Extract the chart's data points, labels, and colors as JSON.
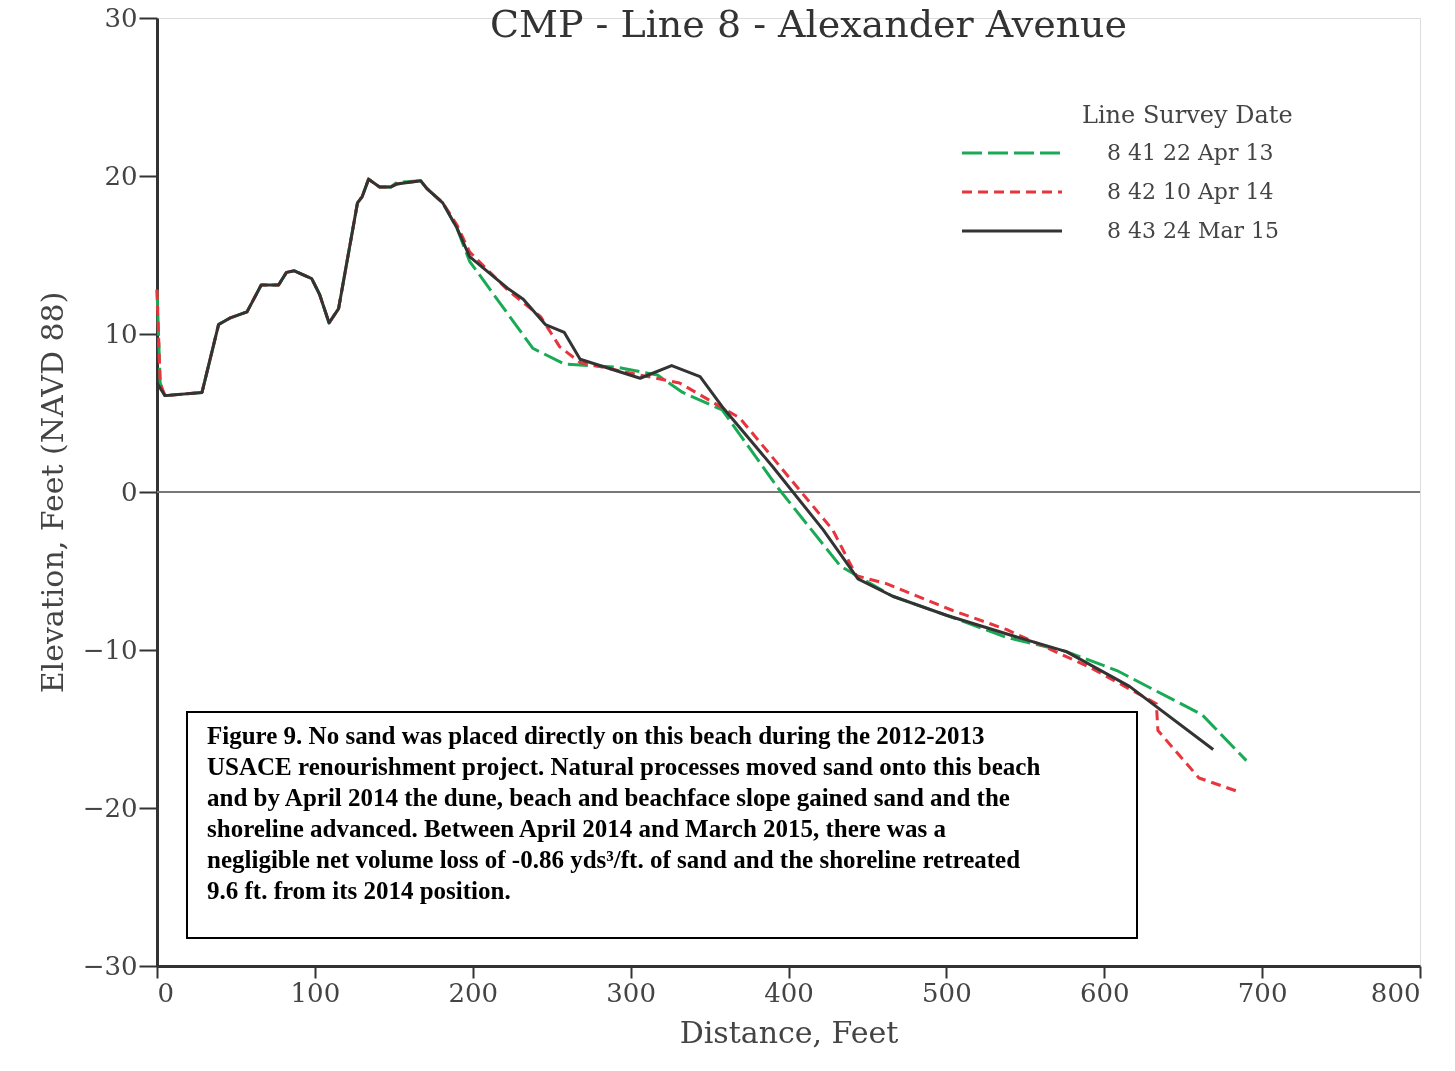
{
  "chart_data": {
    "type": "line",
    "title": "CMP - Line 8 - Alexander Avenue",
    "xlabel": "Distance, Feet",
    "ylabel": "Elevation, Feet (NAVD 88)",
    "xlim": [
      0,
      800
    ],
    "xticks": [
      0,
      100,
      200,
      300,
      400,
      500,
      600,
      700,
      800
    ],
    "ylim": [
      -30,
      30
    ],
    "yticks": [
      -30,
      -20,
      -10,
      0,
      10,
      20,
      30
    ],
    "grid": false,
    "legend": "top right",
    "legend_title": "Line Survey Date",
    "marker": "none",
    "ref_lines": [
      {
        "axis": "y",
        "value": 0,
        "color": "#777777"
      }
    ],
    "annotations": [
      "Figure 9.  No sand was placed directly on this beach during the 2012-2013\nUSACE renourishment project.  Natural processes moved sand onto this beach\nand by April 2014 the dune, beach and beachface slope gained sand and the\nshoreline advanced.  Between April 2014 and March 2015, there was a\nnegligible net volume loss of -0.86 yds³/ft. of sand and the shoreline retreated\n9.6 ft. from its 2014 position."
    ],
    "series": [
      {
        "name": "8 41 22 Apr 13",
        "color": "#1aaa55",
        "line_style": "dashed",
        "x": [
          0,
          2,
          5,
          28.5,
          39,
          46,
          57,
          66,
          77,
          82,
          87,
          98,
          103,
          109,
          115,
          127,
          130,
          134,
          141,
          148,
          152,
          167,
          171,
          181,
          190,
          198,
          238,
          258,
          291,
          317,
          333,
          358,
          393,
          433,
          466,
          500,
          538,
          576,
          608,
          662,
          690
        ],
        "values": [
          12.8,
          6.9,
          6.1,
          6.3,
          10.6,
          11.0,
          11.4,
          13.1,
          13.1,
          13.9,
          14.0,
          13.5,
          12.5,
          10.7,
          11.6,
          18.3,
          18.7,
          19.8,
          19.3,
          19.3,
          19.6,
          19.7,
          19.2,
          18.3,
          16.7,
          14.6,
          9.1,
          8.1,
          7.9,
          7.4,
          6.3,
          5.2,
          0.3,
          -4.7,
          -6.6,
          -7.8,
          -9.2,
          -10.1,
          -11.3,
          -14.1,
          -17.0
        ]
      },
      {
        "name": "8 42 10 Apr 14",
        "color": "#e8343c",
        "line_style": "dotted",
        "x": [
          0,
          2,
          5,
          28.5,
          39,
          46,
          57,
          66,
          77,
          82,
          87,
          98,
          103,
          109,
          115,
          127,
          130,
          134,
          141,
          148,
          152,
          167,
          171,
          181,
          190,
          198,
          222,
          243,
          255,
          268,
          306,
          331,
          369,
          428,
          443,
          462,
          504,
          538,
          591,
          633,
          634,
          660,
          686
        ],
        "values": [
          12.8,
          6.9,
          6.1,
          6.3,
          10.6,
          11.0,
          11.4,
          13.1,
          13.1,
          13.9,
          14.0,
          13.5,
          12.5,
          10.7,
          11.6,
          18.3,
          18.7,
          19.8,
          19.3,
          19.3,
          19.5,
          19.7,
          19.2,
          18.3,
          16.9,
          15.2,
          12.8,
          11.1,
          9.2,
          8.2,
          7.4,
          6.9,
          4.7,
          -2.4,
          -5.3,
          -5.8,
          -7.5,
          -8.7,
          -11.1,
          -13.4,
          -15.1,
          -18.1,
          -19.0
        ]
      },
      {
        "name": "8 43 24 Mar 15",
        "color": "#333333",
        "line_style": "solid",
        "x": [
          0,
          5,
          28.5,
          39,
          46,
          57,
          66,
          77,
          82,
          87,
          98,
          103,
          109,
          115,
          127,
          130,
          134,
          141,
          148,
          152,
          167,
          171,
          181,
          190,
          198,
          222,
          232,
          246,
          258,
          268,
          306,
          326,
          344,
          358,
          390,
          422,
          444,
          466,
          500,
          542,
          576,
          616,
          669
        ],
        "values": [
          6.9,
          6.1,
          6.3,
          10.6,
          11.0,
          11.4,
          13.1,
          13.1,
          13.9,
          14.0,
          13.5,
          12.5,
          10.7,
          11.6,
          18.3,
          18.7,
          19.8,
          19.3,
          19.3,
          19.5,
          19.7,
          19.2,
          18.3,
          16.7,
          14.9,
          12.9,
          12.2,
          10.6,
          10.1,
          8.4,
          7.2,
          8.0,
          7.3,
          5.4,
          1.6,
          -2.4,
          -5.5,
          -6.6,
          -7.8,
          -9.1,
          -10.1,
          -12.3,
          -16.3
        ]
      }
    ]
  }
}
